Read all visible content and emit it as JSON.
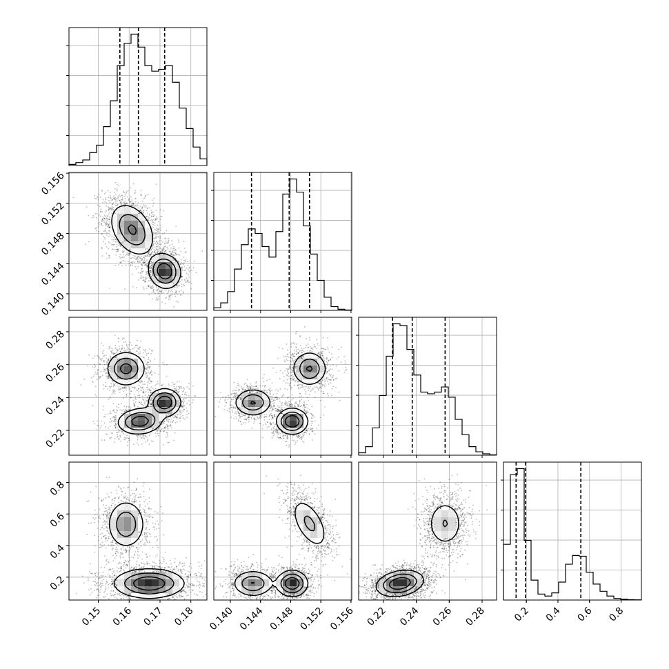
{
  "chart_data": {
    "type": "corner",
    "parameters": [
      {
        "range": [
          0.1405,
          0.1852
        ],
        "ticks": [
          0.15,
          0.16,
          0.17,
          0.18
        ],
        "tick_labels": [
          "0.15",
          "0.16",
          "0.17",
          "0.18"
        ],
        "quantiles": [
          0.157,
          0.163,
          0.1715
        ],
        "histogram": [
          0.3,
          0.8,
          1.5,
          3.5,
          5.5,
          10.5,
          17.5,
          27,
          33,
          35.5,
          32,
          27,
          25.5,
          26,
          27,
          22.5,
          15.5,
          10,
          5,
          1.8
        ]
      },
      {
        "range": [
          0.1378,
          0.1561
        ],
        "ticks": [
          0.14,
          0.144,
          0.148,
          0.152,
          0.156
        ],
        "tick_labels": [
          "0.140",
          "0.144",
          "0.148",
          "0.152",
          "0.156"
        ],
        "quantiles": [
          0.1428,
          0.1478,
          0.1505
        ],
        "histogram": [
          0.7,
          2,
          5,
          11,
          17.5,
          21.7,
          20.5,
          17,
          14.2,
          21,
          31,
          35,
          31.5,
          22.5,
          15,
          8,
          3.5,
          1,
          0.3,
          0.1
        ]
      },
      {
        "range": [
          0.2049,
          0.2888
        ],
        "ticks": [
          0.22,
          0.24,
          0.26,
          0.28
        ],
        "tick_labels": [
          "0.22",
          "0.24",
          "0.26",
          "0.28"
        ],
        "quantiles": [
          0.2255,
          0.2375,
          0.2575
        ],
        "histogram": [
          0.7,
          2.5,
          8,
          17.5,
          29,
          38.5,
          38,
          31,
          23.5,
          18.5,
          18,
          18.5,
          20,
          17,
          10.5,
          6,
          2.5,
          1,
          0.4,
          0.1
        ]
      },
      {
        "range": [
          0.055,
          0.9288
        ],
        "ticks": [
          0.2,
          0.4,
          0.6,
          0.8
        ],
        "tick_labels": [
          "0.2",
          "0.4",
          "0.6",
          "0.8"
        ],
        "quantiles": [
          0.135,
          0.195,
          0.545
        ],
        "histogram": [
          14,
          31.5,
          33,
          15,
          5,
          1.5,
          1,
          1.8,
          4.5,
          9,
          11.2,
          11,
          7,
          4,
          2.2,
          1,
          0.4,
          0.2,
          0.1,
          0.05
        ]
      }
    ],
    "pairs": [
      {
        "row": 1,
        "col": 0,
        "clusters": [
          {
            "cx": 0.161,
            "cy": 0.1485,
            "sx": 0.0035,
            "sy": 0.0017,
            "rho": -0.35,
            "w": 0.6
          },
          {
            "cx": 0.1715,
            "cy": 0.143,
            "sx": 0.0025,
            "sy": 0.0011,
            "rho": -0.1,
            "w": 0.4
          }
        ]
      },
      {
        "row": 2,
        "col": 0,
        "clusters": [
          {
            "cx": 0.159,
            "cy": 0.2575,
            "sx": 0.003,
            "sy": 0.005,
            "rho": 0.0,
            "w": 0.35
          },
          {
            "cx": 0.1635,
            "cy": 0.2255,
            "sx": 0.0035,
            "sy": 0.0038,
            "rho": 0.1,
            "w": 0.35
          },
          {
            "cx": 0.1715,
            "cy": 0.237,
            "sx": 0.0025,
            "sy": 0.004,
            "rho": 0.0,
            "w": 0.3
          }
        ]
      },
      {
        "row": 2,
        "col": 1,
        "clusters": [
          {
            "cx": 0.1505,
            "cy": 0.2575,
            "sx": 0.0011,
            "sy": 0.005,
            "rho": 0.0,
            "w": 0.35
          },
          {
            "cx": 0.143,
            "cy": 0.237,
            "sx": 0.0012,
            "sy": 0.004,
            "rho": 0.0,
            "w": 0.3
          },
          {
            "cx": 0.1482,
            "cy": 0.2255,
            "sx": 0.001,
            "sy": 0.0038,
            "rho": 0.0,
            "w": 0.35
          }
        ]
      },
      {
        "row": 3,
        "col": 0,
        "clusters": [
          {
            "cx": 0.159,
            "cy": 0.535,
            "sx": 0.003,
            "sy": 0.075,
            "rho": 0.0,
            "w": 0.35
          },
          {
            "cx": 0.1665,
            "cy": 0.16,
            "sx": 0.0055,
            "sy": 0.045,
            "rho": 0.0,
            "w": 0.65
          }
        ]
      },
      {
        "row": 3,
        "col": 1,
        "clusters": [
          {
            "cx": 0.1505,
            "cy": 0.54,
            "sx": 0.0012,
            "sy": 0.08,
            "rho": -0.55,
            "w": 0.35
          },
          {
            "cx": 0.143,
            "cy": 0.16,
            "sx": 0.0013,
            "sy": 0.04,
            "rho": 0.0,
            "w": 0.3
          },
          {
            "cx": 0.1482,
            "cy": 0.16,
            "sx": 0.001,
            "sy": 0.04,
            "rho": 0.0,
            "w": 0.35
          }
        ]
      },
      {
        "row": 3,
        "col": 2,
        "clusters": [
          {
            "cx": 0.2575,
            "cy": 0.54,
            "sx": 0.0055,
            "sy": 0.075,
            "rho": 0.0,
            "w": 0.35
          },
          {
            "cx": 0.23,
            "cy": 0.16,
            "sx": 0.007,
            "sy": 0.04,
            "rho": 0.25,
            "w": 0.65
          }
        ]
      }
    ]
  }
}
